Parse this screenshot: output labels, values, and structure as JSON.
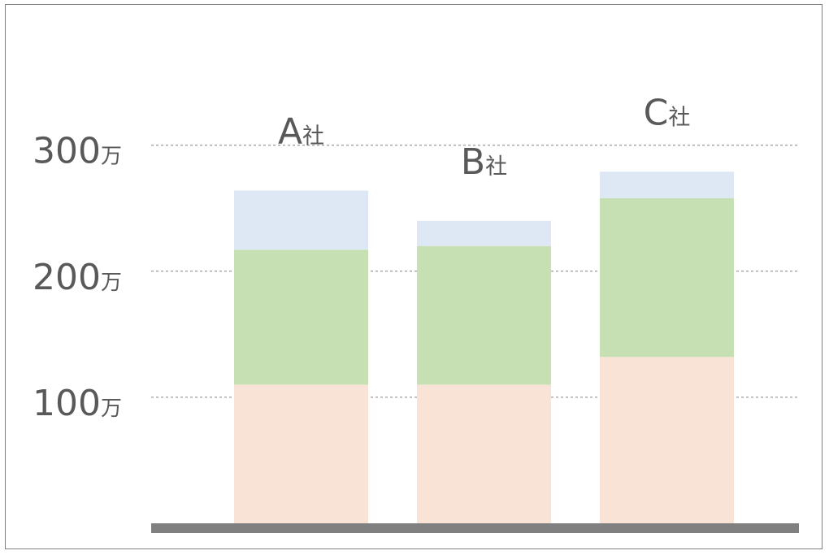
{
  "chart_data": {
    "type": "bar",
    "stacked": true,
    "categories": [
      {
        "main": "A",
        "suffix": "社"
      },
      {
        "main": "B",
        "suffix": "社"
      },
      {
        "main": "C",
        "suffix": "社"
      }
    ],
    "series": [
      {
        "values": [
          110,
          110,
          132
        ],
        "color": "#f9e2d6"
      },
      {
        "values": [
          107,
          110,
          126
        ],
        "color": "#c6e0b4"
      },
      {
        "values": [
          47,
          20,
          21
        ],
        "color": "#dde8f4"
      }
    ],
    "y_ticks": [
      {
        "value": 100,
        "number": "100",
        "unit": "万"
      },
      {
        "value": 200,
        "number": "200",
        "unit": "万"
      },
      {
        "value": 300,
        "number": "300",
        "unit": "万"
      }
    ],
    "ylim": [
      0,
      300
    ],
    "grid": true,
    "grid_style": "dashed",
    "baseline_color": "#808080",
    "grid_color": "#808080",
    "text_color": "#595959"
  }
}
